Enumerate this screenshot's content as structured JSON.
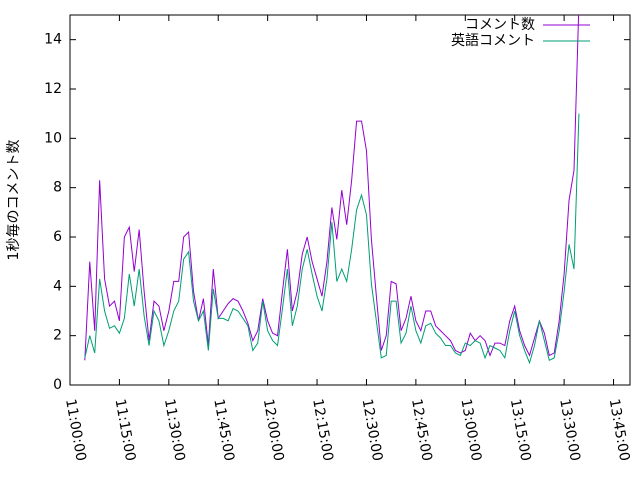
{
  "chart_data": {
    "type": "line",
    "y_label": "1秒毎のコメント数",
    "x": [
      "11:04:30",
      "11:06:00",
      "11:07:30",
      "11:09:00",
      "11:10:30",
      "11:12:00",
      "11:13:30",
      "11:15:00",
      "11:16:30",
      "11:18:00",
      "11:19:30",
      "11:21:00",
      "11:22:30",
      "11:24:00",
      "11:25:30",
      "11:27:00",
      "11:28:30",
      "11:30:00",
      "11:31:30",
      "11:33:00",
      "11:34:30",
      "11:36:00",
      "11:37:30",
      "11:39:00",
      "11:40:30",
      "11:42:00",
      "11:43:30",
      "11:45:00",
      "11:46:30",
      "11:48:00",
      "11:49:30",
      "11:51:00",
      "11:52:30",
      "11:54:00",
      "11:55:30",
      "11:57:00",
      "11:58:30",
      "12:00:00",
      "12:01:30",
      "12:03:00",
      "12:04:30",
      "12:06:00",
      "12:07:30",
      "12:09:00",
      "12:10:30",
      "12:12:00",
      "12:13:30",
      "12:15:00",
      "12:16:30",
      "12:18:00",
      "12:19:30",
      "12:21:00",
      "12:22:30",
      "12:24:00",
      "12:25:30",
      "12:27:00",
      "12:28:30",
      "12:30:00",
      "12:31:30",
      "12:33:00",
      "12:34:30",
      "12:36:00",
      "12:37:30",
      "12:39:00",
      "12:40:30",
      "12:42:00",
      "12:43:30",
      "12:45:00",
      "12:46:30",
      "12:48:00",
      "12:49:30",
      "12:51:00",
      "12:52:30",
      "12:54:00",
      "12:55:30",
      "12:57:00",
      "12:58:30",
      "13:00:00",
      "13:01:30",
      "13:03:00",
      "13:04:30",
      "13:06:00",
      "13:07:30",
      "13:09:00",
      "13:10:30",
      "13:12:00",
      "13:13:30",
      "13:15:00",
      "13:16:30",
      "13:18:00",
      "13:19:30",
      "13:21:00",
      "13:22:30",
      "13:24:00",
      "13:25:30",
      "13:27:00",
      "13:28:30",
      "13:30:00",
      "13:31:30",
      "13:33:00",
      "13:34:30"
    ],
    "series": [
      {
        "name": "コメント数",
        "color": "#9400d3",
        "values": [
          1.0,
          5.0,
          2.2,
          8.3,
          4.3,
          3.2,
          3.4,
          2.6,
          6.0,
          6.4,
          4.6,
          6.3,
          3.8,
          1.8,
          3.4,
          3.2,
          2.2,
          3.0,
          4.2,
          4.2,
          6.0,
          6.2,
          3.8,
          2.6,
          3.5,
          1.6,
          4.7,
          2.7,
          3.0,
          3.3,
          3.5,
          3.4,
          3.0,
          2.5,
          1.8,
          2.2,
          3.5,
          2.6,
          2.1,
          2.0,
          3.8,
          5.5,
          3.0,
          3.8,
          5.3,
          6.0,
          5.0,
          4.3,
          3.6,
          5.0,
          7.2,
          5.9,
          7.9,
          6.5,
          8.3,
          10.7,
          10.7,
          9.5,
          5.9,
          3.6,
          1.4,
          2.0,
          4.2,
          4.1,
          2.2,
          2.7,
          3.6,
          2.6,
          2.2,
          3.0,
          3.0,
          2.4,
          2.2,
          2.0,
          1.8,
          1.4,
          1.3,
          1.4,
          2.1,
          1.8,
          2.0,
          1.8,
          1.2,
          1.7,
          1.7,
          1.6,
          2.6,
          3.2,
          2.2,
          1.6,
          1.2,
          1.9,
          2.6,
          2.1,
          1.2,
          1.3,
          2.6,
          4.5,
          7.5,
          8.7,
          15.5
        ]
      },
      {
        "name": "英語コメント",
        "color": "#009e73",
        "values": [
          1.1,
          2.0,
          1.3,
          4.3,
          3.0,
          2.3,
          2.4,
          2.1,
          2.7,
          4.5,
          3.2,
          4.7,
          2.8,
          1.6,
          3.0,
          2.6,
          1.6,
          2.2,
          3.0,
          3.4,
          5.1,
          5.4,
          3.4,
          2.6,
          3.0,
          1.4,
          3.9,
          2.7,
          2.7,
          2.6,
          3.1,
          3.0,
          2.7,
          2.4,
          1.4,
          1.7,
          3.4,
          2.2,
          1.8,
          1.6,
          3.1,
          4.7,
          2.4,
          3.2,
          4.7,
          5.5,
          4.5,
          3.6,
          3.0,
          4.3,
          6.6,
          4.2,
          4.7,
          4.2,
          5.5,
          7.1,
          7.7,
          6.9,
          4.1,
          2.6,
          1.1,
          1.2,
          3.4,
          3.4,
          1.7,
          2.1,
          3.2,
          2.2,
          1.7,
          2.4,
          2.5,
          2.1,
          1.9,
          1.6,
          1.6,
          1.3,
          1.2,
          1.7,
          1.6,
          1.8,
          1.7,
          1.1,
          1.6,
          1.5,
          1.4,
          1.1,
          2.2,
          3.0,
          2.0,
          1.4,
          0.9,
          1.6,
          2.6,
          1.8,
          1.0,
          1.1,
          2.2,
          3.8,
          5.7,
          4.7,
          11.0
        ]
      }
    ],
    "xlim": [
      "11:00:00",
      "13:50:00"
    ],
    "xticks": [
      "11:00:00",
      "11:15:00",
      "11:30:00",
      "11:45:00",
      "12:00:00",
      "12:15:00",
      "12:30:00",
      "12:45:00",
      "13:00:00",
      "13:15:00",
      "13:30:00",
      "13:45:00"
    ],
    "ylim": [
      0,
      15
    ],
    "yticks": [
      0,
      2,
      4,
      6,
      8,
      10,
      12,
      14
    ],
    "legend": "top-right"
  }
}
